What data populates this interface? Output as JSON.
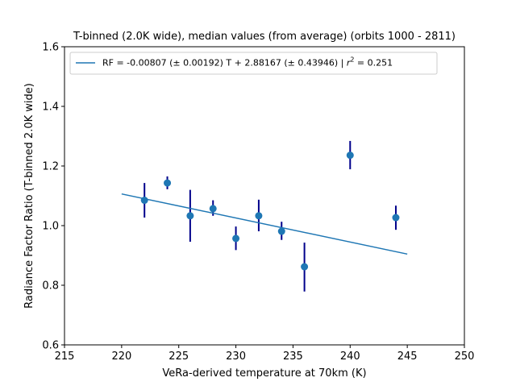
{
  "chart_data": {
    "type": "scatter",
    "title": "T-binned (2.0K wide), median values (from average) (orbits 1000 - 2811)",
    "xlabel": "VeRa-derived temperature at 70km (K)",
    "ylabel": "Radiance Factor Ratio (T-binned 2.0K wide)",
    "xlim": [
      215,
      250
    ],
    "ylim": [
      0.6,
      1.6
    ],
    "xticks": [
      215,
      220,
      225,
      230,
      235,
      240,
      245,
      250
    ],
    "yticks": [
      0.6,
      0.8,
      1.0,
      1.2,
      1.4,
      1.6
    ],
    "xtick_labels": [
      "215",
      "220",
      "225",
      "230",
      "235",
      "240",
      "245",
      "250"
    ],
    "ytick_labels": [
      "0.6",
      "0.8",
      "1.0",
      "1.2",
      "1.4",
      "1.6"
    ],
    "grid": false,
    "legend_position": "top-left",
    "legend": {
      "prefix": "RF = -0.00807 (± 0.00192) T + 2.88167 (± 0.43946) | ",
      "r": "r",
      "sup": "2",
      "suffix": " = 0.251"
    },
    "series": [
      {
        "type": "errorbar",
        "color": "#1f77b4",
        "errorbar_color": "#00008b",
        "points": [
          {
            "x": 222,
            "y": 1.085,
            "yerr_low": 1.027,
            "yerr_high": 1.143
          },
          {
            "x": 224,
            "y": 1.143,
            "yerr_low": 1.122,
            "yerr_high": 1.165
          },
          {
            "x": 226,
            "y": 1.033,
            "yerr_low": 0.946,
            "yerr_high": 1.12
          },
          {
            "x": 228,
            "y": 1.057,
            "yerr_low": 1.033,
            "yerr_high": 1.085
          },
          {
            "x": 230,
            "y": 0.957,
            "yerr_low": 0.918,
            "yerr_high": 0.997
          },
          {
            "x": 232,
            "y": 1.033,
            "yerr_low": 0.981,
            "yerr_high": 1.087
          },
          {
            "x": 234,
            "y": 0.981,
            "yerr_low": 0.952,
            "yerr_high": 1.013
          },
          {
            "x": 236,
            "y": 0.862,
            "yerr_low": 0.779,
            "yerr_high": 0.943
          },
          {
            "x": 240,
            "y": 1.236,
            "yerr_low": 1.189,
            "yerr_high": 1.284
          },
          {
            "x": 244,
            "y": 1.027,
            "yerr_low": 0.986,
            "yerr_high": 1.067
          }
        ]
      },
      {
        "type": "line",
        "color": "#1f77b4",
        "slope": -0.00807,
        "intercept": 2.88167,
        "x_range": [
          220,
          245
        ]
      }
    ]
  }
}
